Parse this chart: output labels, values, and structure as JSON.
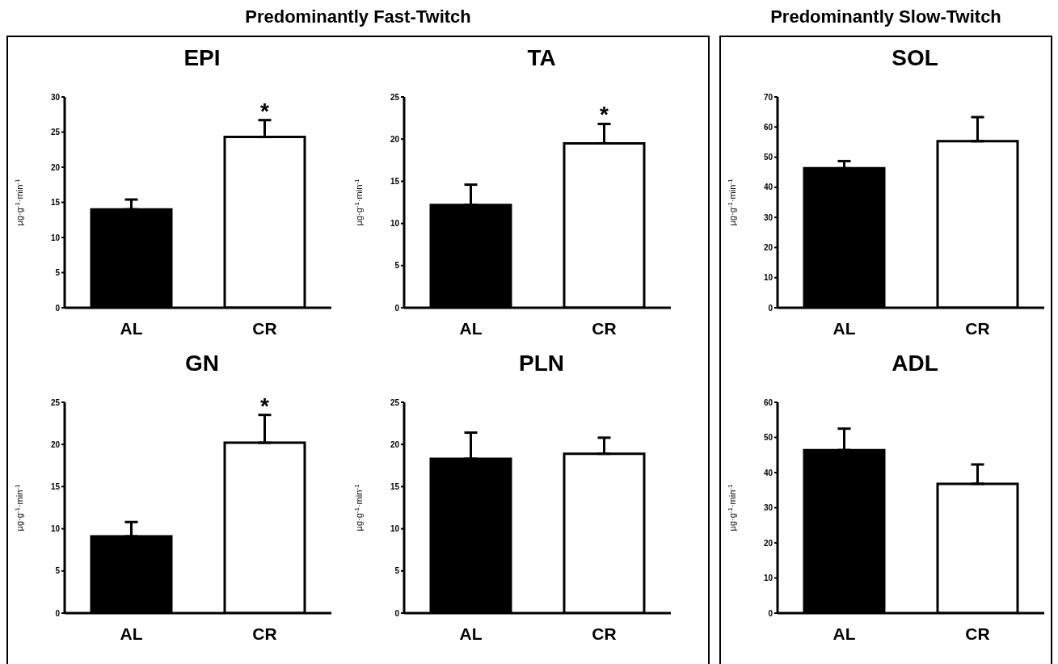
{
  "chart_data": [
    {
      "type": "bar",
      "title": "EPI",
      "ylabel": "µg·g$^{-1}$·min$^{-1}$",
      "categories": [
        "AL",
        "CR"
      ],
      "values": [
        14,
        24.3
      ],
      "errors": [
        [
          14,
          15.4
        ],
        [
          24.3,
          26.7
        ]
      ],
      "colors": [
        "#000000",
        "#ffffff"
      ],
      "ylim": [
        0,
        30
      ],
      "yticks": [
        0,
        5,
        10,
        15,
        20,
        25,
        30
      ],
      "annotations": [
        "Predominantly Fast-Twitch",
        {
          "text": "*",
          "x": "CR",
          "y": 26.7
        }
      ]
    },
    {
      "type": "bar",
      "title": "TA",
      "ylabel": "µg·g$^{-1}$·min$^{-1}$",
      "categories": [
        "AL",
        "CR"
      ],
      "values": [
        12.2,
        19.5
      ],
      "errors": [
        [
          12.2,
          14.6
        ],
        [
          19.5,
          21.8
        ]
      ],
      "colors": [
        "#000000",
        "#ffffff"
      ],
      "ylim": [
        0,
        25
      ],
      "yticks": [
        0,
        5,
        10,
        15,
        20,
        25
      ],
      "annotations": [
        {
          "text": "*",
          "x": "CR",
          "y": 21.8
        }
      ]
    },
    {
      "type": "bar",
      "title": "SOL",
      "ylabel": "µg·g$^{-1}$·min$^{-1}$",
      "categories": [
        "AL",
        "CR"
      ],
      "values": [
        46.3,
        55.3
      ],
      "errors": [
        [
          46.3,
          48.7
        ],
        [
          55.3,
          63.3
        ]
      ],
      "colors": [
        "#000000",
        "#ffffff"
      ],
      "ylim": [
        0,
        70
      ],
      "yticks": [
        0,
        10,
        20,
        30,
        40,
        50,
        60,
        70
      ],
      "annotations": [
        "Predominantly Slow-Twitch"
      ]
    },
    {
      "type": "bar",
      "title": "GN",
      "ylabel": "µg·g$^{-1}$·min$^{-1}$",
      "categories": [
        "AL",
        "CR"
      ],
      "values": [
        9.1,
        20.2
      ],
      "errors": [
        [
          9.1,
          10.8
        ],
        [
          20.2,
          23.5
        ]
      ],
      "colors": [
        "#000000",
        "#ffffff"
      ],
      "ylim": [
        0,
        25
      ],
      "yticks": [
        0,
        5,
        10,
        15,
        20,
        25
      ],
      "annotations": [
        {
          "text": "*",
          "x": "CR",
          "y": 23.5
        }
      ]
    },
    {
      "type": "bar",
      "title": "PLN",
      "ylabel": "µg·g$^{-1}$·min$^{-1}$",
      "categories": [
        "AL",
        "CR"
      ],
      "values": [
        18.3,
        18.9
      ],
      "errors": [
        [
          18.3,
          21.4
        ],
        [
          18.9,
          20.8
        ]
      ],
      "colors": [
        "#000000",
        "#ffffff"
      ],
      "ylim": [
        0,
        25
      ],
      "yticks": [
        0,
        5,
        10,
        15,
        20,
        25
      ]
    },
    {
      "type": "bar",
      "title": "ADL",
      "ylabel": "µg·g$^{-1}$·min$^{-1}$",
      "categories": [
        "AL",
        "CR"
      ],
      "values": [
        46.4,
        36.8
      ],
      "errors": [
        [
          46.4,
          52.5
        ],
        [
          36.8,
          42.3
        ]
      ],
      "colors": [
        "#000000",
        "#ffffff"
      ],
      "ylim": [
        0,
        60
      ],
      "yticks": [
        0,
        10,
        20,
        30,
        40,
        50,
        60
      ]
    }
  ]
}
